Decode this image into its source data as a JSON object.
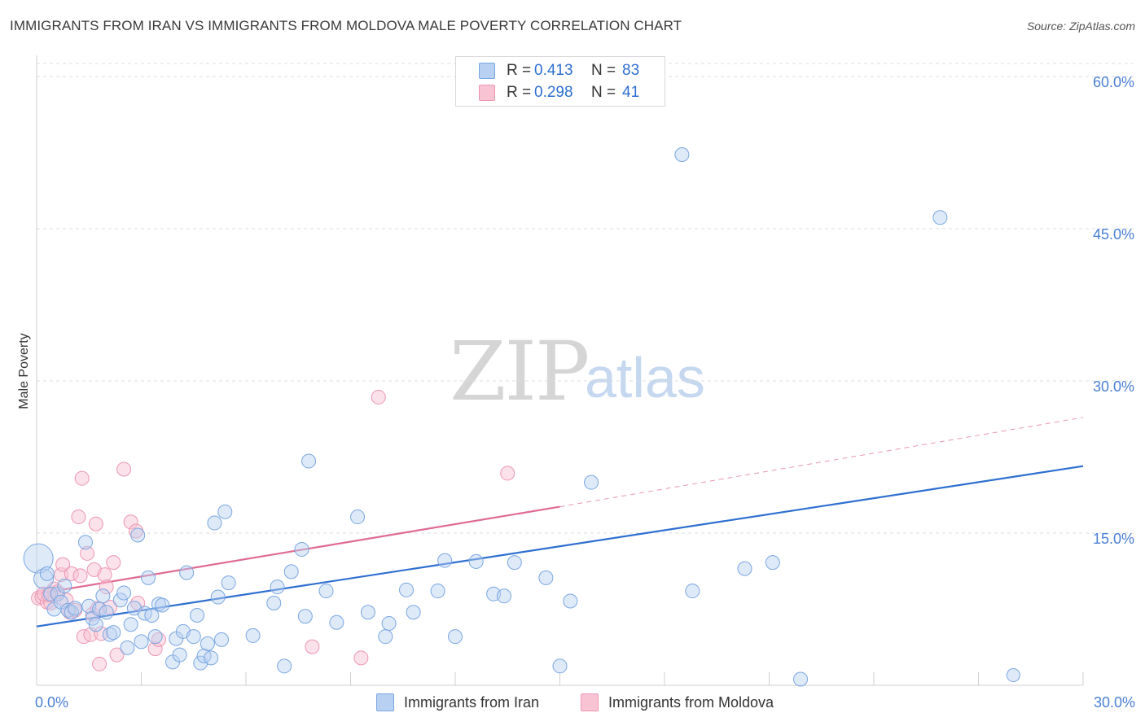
{
  "title": "IMMIGRANTS FROM IRAN VS IMMIGRANTS FROM MOLDOVA MALE POVERTY CORRELATION CHART",
  "source": "Source: ZipAtlas.com",
  "watermark": {
    "zip": "ZIP",
    "atlas": "atlas"
  },
  "colors": {
    "iran_fill": "#b8d0f2",
    "iran_stroke": "#7aa6e0",
    "iran_line": "#2f6fd0",
    "moldova_fill": "#f8c3d3",
    "moldova_stroke": "#ec96b2",
    "moldova_line": "#e06a92",
    "grid": "#dcdcdc",
    "tick": "#4a7fd4"
  },
  "legend": {
    "rows": [
      {
        "r_label": "R = ",
        "r_value": "0.413",
        "n_label": "N = ",
        "n_value": "83"
      },
      {
        "r_label": "R = ",
        "r_value": "0.298",
        "n_label": "N = ",
        "n_value": "41"
      }
    ]
  },
  "bottom_legend": [
    "Immigrants from Iran",
    "Immigrants from Moldova"
  ],
  "chart_data": {
    "type": "scatter",
    "title": "IMMIGRANTS FROM IRAN VS IMMIGRANTS FROM MOLDOVA MALE POVERTY CORRELATION CHART",
    "xlabel": "",
    "ylabel": "Male Poverty",
    "xlim": [
      0,
      30
    ],
    "ylim": [
      0,
      62
    ],
    "x_tick_labels": [
      "0.0%",
      "30.0%"
    ],
    "x_ticks": [
      0,
      30
    ],
    "y_ticks": [
      15,
      30,
      45,
      60
    ],
    "y_tick_labels": [
      "15.0%",
      "30.0%",
      "45.0%",
      "60.0%"
    ],
    "grid": true,
    "series": [
      {
        "name": "Immigrants from Iran",
        "R": 0.413,
        "N": 83,
        "trend": {
          "x": [
            0,
            30
          ],
          "y": [
            5.8,
            21.6
          ]
        },
        "points": [
          [
            0.05,
            12.5,
            3
          ],
          [
            0.2,
            10.5,
            2
          ],
          [
            0.3,
            11.0,
            1
          ],
          [
            0.4,
            9.0,
            1
          ],
          [
            0.5,
            7.5,
            1
          ],
          [
            0.6,
            9.0,
            1
          ],
          [
            0.7,
            8.2,
            1
          ],
          [
            0.8,
            9.8,
            1
          ],
          [
            0.9,
            7.4,
            1
          ],
          [
            1.0,
            7.2,
            1
          ],
          [
            1.1,
            7.6,
            1
          ],
          [
            1.4,
            14.1,
            1
          ],
          [
            1.5,
            7.8,
            1
          ],
          [
            1.6,
            6.6,
            1
          ],
          [
            1.7,
            6.0,
            1
          ],
          [
            1.8,
            7.5,
            1
          ],
          [
            1.9,
            8.8,
            1
          ],
          [
            2.0,
            7.2,
            1
          ],
          [
            2.1,
            5.0,
            1
          ],
          [
            2.2,
            5.2,
            1
          ],
          [
            2.4,
            8.4,
            1
          ],
          [
            2.5,
            9.1,
            1
          ],
          [
            2.6,
            3.7,
            1
          ],
          [
            2.7,
            6.0,
            1
          ],
          [
            2.8,
            7.6,
            1
          ],
          [
            2.9,
            14.8,
            1
          ],
          [
            3.0,
            4.3,
            1
          ],
          [
            3.1,
            7.1,
            1
          ],
          [
            3.2,
            10.6,
            1
          ],
          [
            3.3,
            6.9,
            1
          ],
          [
            3.4,
            4.8,
            1
          ],
          [
            3.5,
            8.0,
            1
          ],
          [
            3.6,
            7.9,
            1
          ],
          [
            3.9,
            2.3,
            1
          ],
          [
            4.0,
            4.6,
            1
          ],
          [
            4.1,
            3.0,
            1
          ],
          [
            4.2,
            5.3,
            1
          ],
          [
            4.3,
            11.1,
            1
          ],
          [
            4.5,
            4.8,
            1
          ],
          [
            4.6,
            6.9,
            1
          ],
          [
            4.7,
            2.2,
            1
          ],
          [
            4.8,
            2.9,
            1
          ],
          [
            4.9,
            4.1,
            1
          ],
          [
            5.0,
            2.7,
            1
          ],
          [
            5.1,
            16.0,
            1
          ],
          [
            5.2,
            8.7,
            1
          ],
          [
            5.3,
            4.5,
            1
          ],
          [
            5.4,
            17.1,
            1
          ],
          [
            5.5,
            10.1,
            1
          ],
          [
            6.2,
            4.9,
            1
          ],
          [
            6.8,
            8.1,
            1
          ],
          [
            6.9,
            9.7,
            1
          ],
          [
            7.1,
            1.9,
            1
          ],
          [
            7.3,
            11.2,
            1
          ],
          [
            7.6,
            13.4,
            1
          ],
          [
            7.7,
            6.8,
            1
          ],
          [
            7.8,
            22.1,
            1
          ],
          [
            8.3,
            9.3,
            1
          ],
          [
            8.6,
            6.2,
            1
          ],
          [
            9.2,
            16.6,
            1
          ],
          [
            9.5,
            7.2,
            1
          ],
          [
            10.0,
            4.8,
            1
          ],
          [
            10.1,
            6.1,
            1
          ],
          [
            10.6,
            9.4,
            1
          ],
          [
            10.8,
            7.2,
            1
          ],
          [
            11.5,
            9.3,
            1
          ],
          [
            11.7,
            12.3,
            1
          ],
          [
            12.0,
            4.8,
            1
          ],
          [
            12.6,
            12.2,
            1
          ],
          [
            13.1,
            9.0,
            1
          ],
          [
            13.4,
            8.8,
            1
          ],
          [
            13.7,
            12.1,
            1
          ],
          [
            14.6,
            10.6,
            1
          ],
          [
            15.0,
            1.9,
            1
          ],
          [
            15.3,
            8.3,
            1
          ],
          [
            15.9,
            20.0,
            1
          ],
          [
            18.5,
            52.3,
            1
          ],
          [
            18.8,
            9.3,
            1
          ],
          [
            20.3,
            11.5,
            1
          ],
          [
            21.1,
            12.1,
            1
          ],
          [
            21.9,
            0.6,
            1
          ],
          [
            25.9,
            46.1,
            1
          ],
          [
            28.0,
            1.0,
            0
          ]
        ]
      },
      {
        "name": "Immigrants from Moldova",
        "R": 0.298,
        "N": 41,
        "trend_solid": {
          "x": [
            0,
            15
          ],
          "y": [
            9.0,
            17.6
          ]
        },
        "trend_dashed": {
          "x": [
            15,
            30
          ],
          "y": [
            17.6,
            26.4
          ]
        },
        "points": [
          [
            0.05,
            8.6,
            1
          ],
          [
            0.15,
            8.7,
            1
          ],
          [
            0.3,
            8.2,
            1
          ],
          [
            0.4,
            8.1,
            1
          ],
          [
            0.5,
            9.5,
            1
          ],
          [
            0.6,
            9.2,
            1
          ],
          [
            0.7,
            10.9,
            1
          ],
          [
            0.75,
            11.9,
            1
          ],
          [
            0.85,
            8.4,
            1
          ],
          [
            0.95,
            7.2,
            1
          ],
          [
            1.0,
            11.0,
            1
          ],
          [
            1.1,
            7.4,
            1
          ],
          [
            1.2,
            16.6,
            1
          ],
          [
            1.25,
            10.8,
            1
          ],
          [
            1.3,
            20.4,
            1
          ],
          [
            1.35,
            4.8,
            1
          ],
          [
            1.45,
            13.0,
            1
          ],
          [
            1.55,
            5.0,
            1
          ],
          [
            1.6,
            7.0,
            1
          ],
          [
            1.65,
            11.4,
            1
          ],
          [
            1.7,
            15.9,
            1
          ],
          [
            1.75,
            7.6,
            1
          ],
          [
            1.8,
            2.1,
            1
          ],
          [
            1.85,
            5.1,
            1
          ],
          [
            1.95,
            10.9,
            1
          ],
          [
            2.0,
            9.7,
            1
          ],
          [
            2.1,
            7.7,
            1
          ],
          [
            2.2,
            12.1,
            1
          ],
          [
            2.3,
            3.0,
            1
          ],
          [
            2.5,
            21.3,
            1
          ],
          [
            2.7,
            16.1,
            1
          ],
          [
            2.85,
            15.2,
            1
          ],
          [
            2.9,
            8.1,
            1
          ],
          [
            3.4,
            3.6,
            1
          ],
          [
            3.5,
            4.5,
            1
          ],
          [
            7.9,
            3.8,
            1
          ],
          [
            9.3,
            2.7,
            1
          ],
          [
            9.8,
            28.4,
            1
          ],
          [
            13.5,
            20.9,
            1
          ],
          [
            0.2,
            9.0,
            1
          ],
          [
            0.35,
            8.9,
            1
          ]
        ]
      }
    ]
  }
}
